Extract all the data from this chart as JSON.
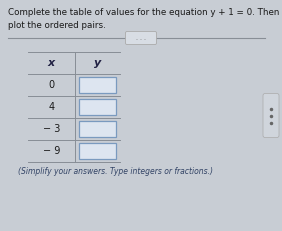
{
  "title_line1": "Complete the table of values for the equation y + 1 = 0. Then",
  "title_line2": "plot the ordered pairs.",
  "x_values": [
    "0",
    "4",
    "− 3",
    "− 9"
  ],
  "y_label": "y",
  "x_label": "x",
  "footnote": "(Simplify your answers. Type integers or fractions.)",
  "bg_color": "#c8cdd4",
  "cell_bg": "#dde5f0",
  "cell_border": "#7a9abf",
  "divider_color": "#888e96",
  "text_color": "#1a1a1a",
  "header_color": "#222244",
  "dots_btn_bg": "#d8dde4",
  "dots_btn_border": "#aaaaaa",
  "right_btn_bg": "#d0d5dc",
  "right_btn_border": "#aaaaaa",
  "footnote_color": "#334466"
}
